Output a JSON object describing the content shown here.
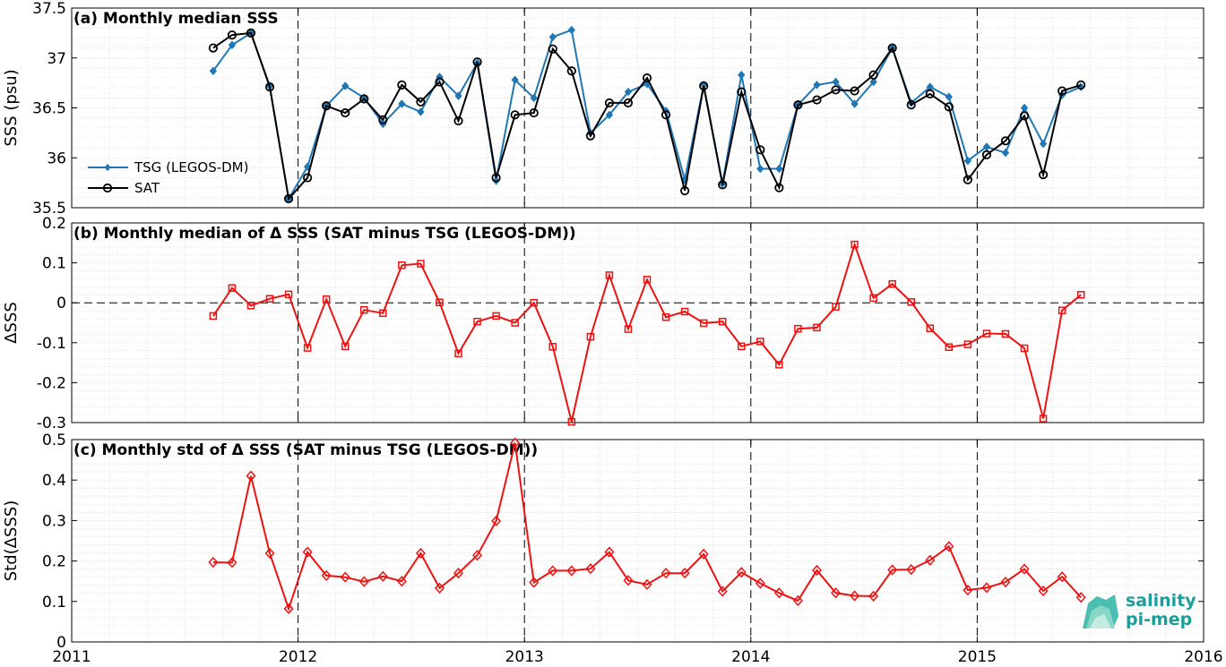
{
  "chart_data": [
    {
      "panel": "a",
      "type": "line",
      "title": "(a) Monthly median SSS",
      "ylabel": "SSS (psu)",
      "ylim": [
        35.5,
        37.5
      ],
      "yticks": [
        "35.5",
        "36",
        "36.5",
        "37",
        "37.5"
      ],
      "xlim": [
        2011,
        2016
      ],
      "grid": "dotted minor",
      "legend_position": "left",
      "x": [
        "2011-08",
        "2011-09",
        "2011-10",
        "2011-11",
        "2011-12",
        "2012-01",
        "2012-02",
        "2012-03",
        "2012-04",
        "2012-05",
        "2012-06",
        "2012-07",
        "2012-08",
        "2012-09",
        "2012-10",
        "2012-11",
        "2012-12",
        "2013-01",
        "2013-02",
        "2013-03",
        "2013-04",
        "2013-05",
        "2013-06",
        "2013-07",
        "2013-08",
        "2013-09",
        "2013-10",
        "2013-11",
        "2013-12",
        "2014-01",
        "2014-02",
        "2014-03",
        "2014-04",
        "2014-05",
        "2014-06",
        "2014-07",
        "2014-08",
        "2014-09",
        "2014-10",
        "2014-11",
        "2014-12",
        "2015-01",
        "2015-02",
        "2015-03",
        "2015-04",
        "2015-05",
        "2015-06"
      ],
      "series": [
        {
          "name": "TSG (LEGOS-DM)",
          "color": "#1f77b4",
          "values": [
            36.87,
            37.13,
            37.25,
            36.72,
            35.59,
            35.91,
            36.52,
            36.72,
            36.6,
            36.34,
            36.54,
            36.46,
            36.81,
            36.62,
            36.95,
            35.77,
            36.78,
            36.6,
            37.21,
            37.28,
            36.25,
            36.43,
            36.66,
            36.74,
            36.47,
            35.78,
            36.73,
            35.74,
            36.83,
            35.89,
            35.89,
            36.53,
            36.73,
            36.76,
            36.54,
            36.76,
            37.1,
            36.55,
            36.71,
            36.61,
            35.97,
            36.11,
            36.05,
            36.5,
            36.14,
            36.63,
            36.71
          ]
        },
        {
          "name": "SAT",
          "color": "#000000",
          "values": [
            37.1,
            37.23,
            37.25,
            36.71,
            35.59,
            35.8,
            36.52,
            36.45,
            36.59,
            36.38,
            36.73,
            36.56,
            36.76,
            36.37,
            36.96,
            35.8,
            36.43,
            36.45,
            37.09,
            36.87,
            36.22,
            36.55,
            36.55,
            36.8,
            36.43,
            35.67,
            36.72,
            35.73,
            36.66,
            36.08,
            35.7,
            36.53,
            36.58,
            36.68,
            36.67,
            36.83,
            37.1,
            36.53,
            36.64,
            36.51,
            35.78,
            36.03,
            36.17,
            36.42,
            35.83,
            36.67,
            36.73
          ]
        }
      ]
    },
    {
      "panel": "b",
      "type": "line",
      "title": "(b) Monthly median of Δ SSS (SAT minus TSG (LEGOS-DM))",
      "ylabel": "ΔSSS",
      "ylim": [
        -0.3,
        0.2
      ],
      "yticks": [
        "-0.3",
        "-0.2",
        "-0.1",
        "0",
        "0.1",
        "0.2"
      ],
      "xlim": [
        2011,
        2016
      ],
      "marker": "square",
      "zero_line": true,
      "x": [
        "2011-08",
        "2011-09",
        "2011-10",
        "2011-11",
        "2011-12",
        "2012-01",
        "2012-02",
        "2012-03",
        "2012-04",
        "2012-05",
        "2012-06",
        "2012-07",
        "2012-08",
        "2012-09",
        "2012-10",
        "2012-11",
        "2012-12",
        "2013-01",
        "2013-02",
        "2013-03",
        "2013-04",
        "2013-05",
        "2013-06",
        "2013-07",
        "2013-08",
        "2013-09",
        "2013-10",
        "2013-11",
        "2013-12",
        "2014-01",
        "2014-02",
        "2014-03",
        "2014-04",
        "2014-05",
        "2014-06",
        "2014-07",
        "2014-08",
        "2014-09",
        "2014-10",
        "2014-11",
        "2014-12",
        "2015-01",
        "2015-02",
        "2015-03",
        "2015-04",
        "2015-05",
        "2015-06"
      ],
      "series": [
        {
          "color": "#ee1111",
          "values": [
            -0.033,
            0.037,
            -0.007,
            0.01,
            0.021,
            -0.113,
            0.009,
            -0.109,
            -0.018,
            -0.026,
            0.094,
            0.098,
            0.001,
            -0.127,
            -0.047,
            -0.033,
            -0.05,
            0.0,
            -0.11,
            -0.298,
            -0.085,
            0.069,
            -0.066,
            0.058,
            -0.036,
            -0.022,
            -0.051,
            -0.047,
            -0.109,
            -0.097,
            -0.155,
            -0.065,
            -0.062,
            -0.01,
            0.146,
            0.012,
            0.047,
            0.002,
            -0.064,
            -0.111,
            -0.104,
            -0.077,
            -0.078,
            -0.114,
            -0.29,
            -0.019,
            0.02
          ]
        }
      ]
    },
    {
      "panel": "c",
      "type": "line",
      "title": "(c) Monthly std of Δ SSS (SAT minus TSG (LEGOS-DM))",
      "ylabel": "Std(ΔSSS)",
      "ylim": [
        0,
        0.5
      ],
      "yticks": [
        "0",
        "0.1",
        "0.2",
        "0.3",
        "0.4",
        "0.5"
      ],
      "xlim": [
        2011,
        2016
      ],
      "xticks": [
        "2011",
        "2012",
        "2013",
        "2014",
        "2015",
        "2016"
      ],
      "marker": "diamond",
      "x": [
        "2011-08",
        "2011-09",
        "2011-10",
        "2011-11",
        "2011-12",
        "2012-01",
        "2012-02",
        "2012-03",
        "2012-04",
        "2012-05",
        "2012-06",
        "2012-07",
        "2012-08",
        "2012-09",
        "2012-10",
        "2012-11",
        "2012-12",
        "2013-01",
        "2013-02",
        "2013-03",
        "2013-04",
        "2013-05",
        "2013-06",
        "2013-07",
        "2013-08",
        "2013-09",
        "2013-10",
        "2013-11",
        "2013-12",
        "2014-01",
        "2014-02",
        "2014-03",
        "2014-04",
        "2014-05",
        "2014-06",
        "2014-07",
        "2014-08",
        "2014-09",
        "2014-10",
        "2014-11",
        "2014-12",
        "2015-01",
        "2015-02",
        "2015-03",
        "2015-04",
        "2015-05",
        "2015-06"
      ],
      "series": [
        {
          "color": "#ee1111",
          "values": [
            0.197,
            0.196,
            0.41,
            0.219,
            0.082,
            0.222,
            0.164,
            0.16,
            0.149,
            0.162,
            0.15,
            0.219,
            0.133,
            0.17,
            0.214,
            0.299,
            0.492,
            0.147,
            0.176,
            0.176,
            0.181,
            0.222,
            0.152,
            0.142,
            0.17,
            0.17,
            0.217,
            0.125,
            0.172,
            0.145,
            0.121,
            0.102,
            0.177,
            0.121,
            0.114,
            0.113,
            0.178,
            0.179,
            0.202,
            0.236,
            0.128,
            0.134,
            0.148,
            0.18,
            0.126,
            0.161,
            0.11
          ]
        }
      ]
    }
  ],
  "logo": {
    "line1": "salinity",
    "line2": "pi-mep"
  }
}
